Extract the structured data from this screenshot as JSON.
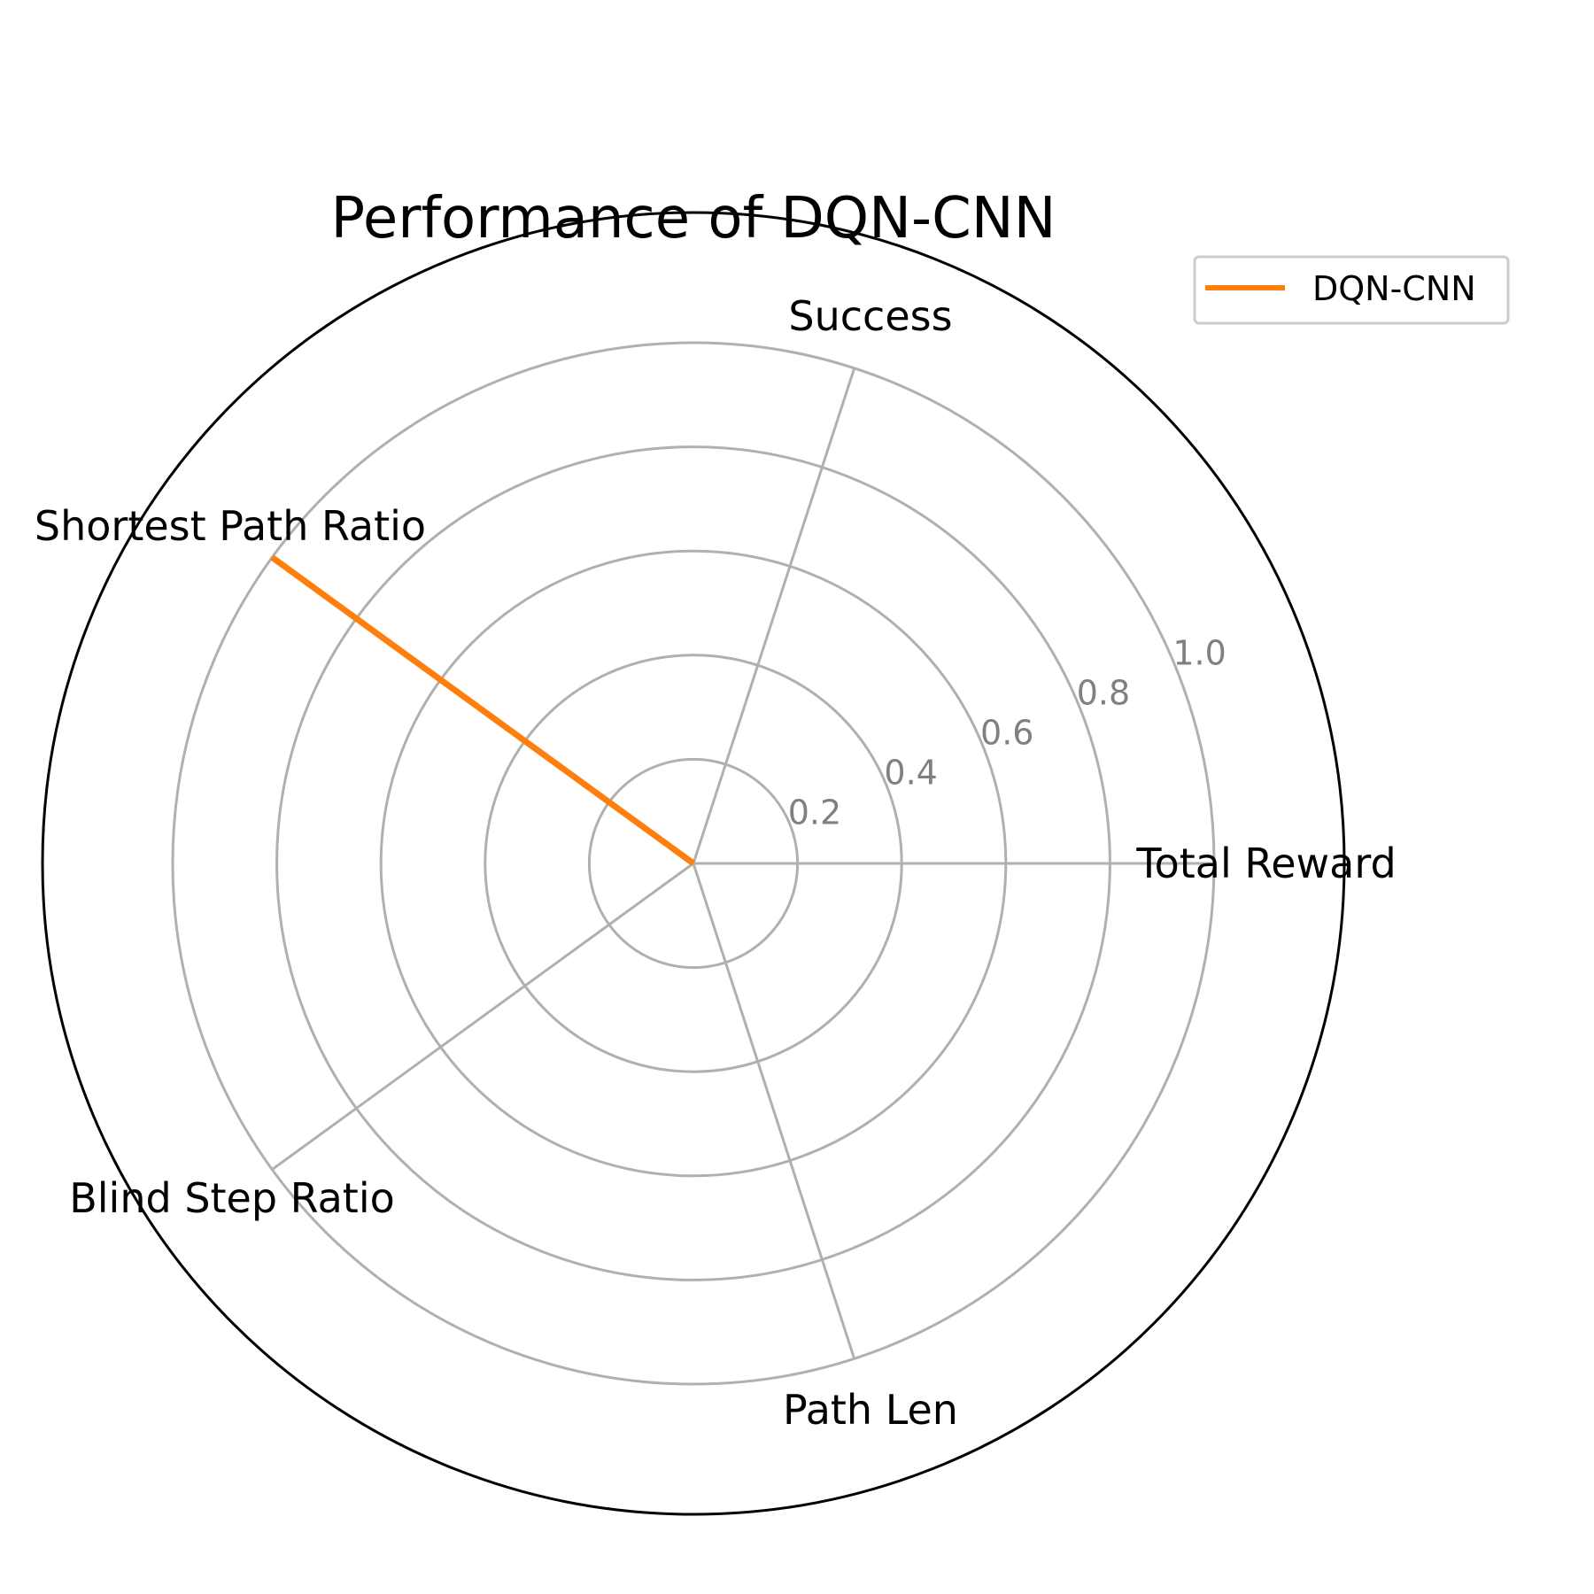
{
  "chart_data": {
    "type": "radar",
    "title": "Performance of DQN-CNN",
    "axes": [
      "Total Reward",
      "Success",
      "Shortest Path Ratio",
      "Blind Step Ratio",
      "Path Len"
    ],
    "radial_ticks": [
      0.2,
      0.4,
      0.6,
      0.8,
      1.0
    ],
    "radial_tick_labels": [
      "0.2",
      "0.4",
      "0.6",
      "0.8",
      "1.0"
    ],
    "rlim": [
      0,
      1
    ],
    "grid": true,
    "legend": {
      "position": "top-right"
    },
    "series": [
      {
        "name": "DQN-CNN",
        "color": "#ff7f0e",
        "values": [
          0.0,
          0.0,
          1.0,
          0.0,
          0.0
        ]
      }
    ],
    "colors": {
      "grid": "#b0b0b0",
      "outer_ring": "#000000",
      "tick_label": "#808080"
    }
  }
}
